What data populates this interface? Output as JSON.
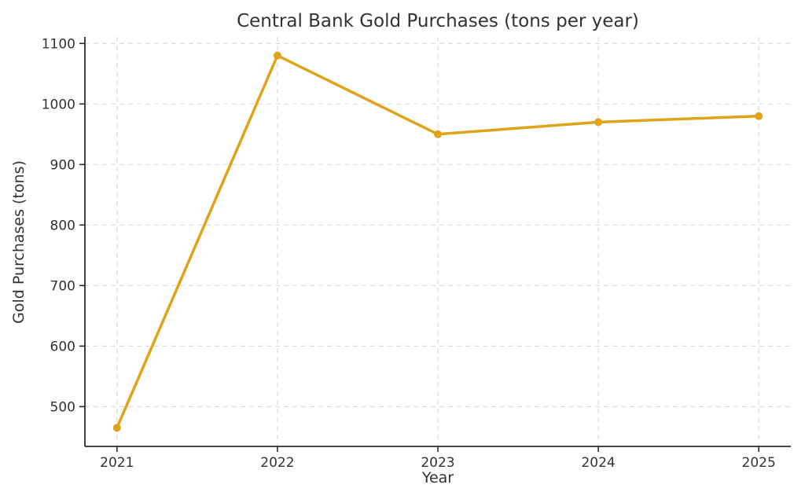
{
  "chart_data": {
    "type": "line",
    "title": "Central Bank Gold Purchases (tons per year)",
    "xlabel": "Year",
    "ylabel": "Gold Purchases (tons)",
    "categories": [
      "2021",
      "2022",
      "2023",
      "2024",
      "2025"
    ],
    "series": [
      {
        "name": "Gold Purchases",
        "values": [
          465,
          1080,
          950,
          970,
          980
        ]
      }
    ],
    "ylim": [
      434.25,
      1110.75
    ],
    "yticks": [
      500,
      600,
      700,
      800,
      900,
      1000,
      1100
    ],
    "x_margin_fraction": 0.05,
    "grid": "dashed-both-axes",
    "legend": "none",
    "spines_visible": [
      "left",
      "bottom"
    ],
    "colors": {
      "line": "#E0A418",
      "marker": "#E0A418",
      "grid": "#DBDBDB",
      "axis": "#2B2B2B",
      "text": "#333333",
      "background": "#FFFFFF"
    }
  }
}
